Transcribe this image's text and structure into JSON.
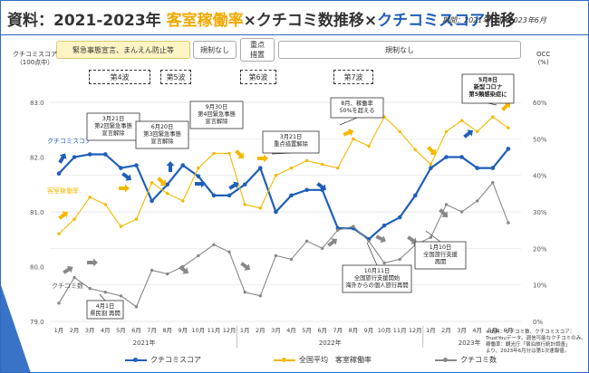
{
  "title": {
    "prefix": "資料：2021-2023年",
    "occ": "客室稼働率",
    "x1": "×",
    "count": "クチコミ数",
    "mid": "推移×",
    "score": "クチコミスコア",
    "suffix": "推移"
  },
  "period": "期間：2021年1月～2023年6月",
  "restrictions": {
    "emergency": "緊急事態宣言、まんえん防止等",
    "restricted": "規制なし",
    "priority": "重点\n措置",
    "no_restriction": "規制なし"
  },
  "waves": [
    "第4波",
    "第5波",
    "第6波",
    "第7波"
  ],
  "axis_left_title": "クチコミスコア\n（100点中）",
  "axis_right_title": "OCC\n(%)",
  "series_labels": {
    "score": "クチコミスコア",
    "occ": "客室稼働率",
    "count": "クチコミ数"
  },
  "years": [
    "2021年",
    "2022年",
    "2023年"
  ],
  "source_note": "※出典：クチコミ数、クチコミスコア：\nTrustYouデータ。週信可能なクチコミのみ。\n稼働率：観光庁「宿泊旅行統計調査」\nより、2023年6月分は第1次速報値。",
  "legend": {
    "score": "クチコミスコア",
    "occ": "全国平均　客室稼働率",
    "count": "クチコミ数"
  },
  "colors": {
    "score": "#1f5fb8",
    "occ": "#f5b800",
    "count": "#888888",
    "accent": "#2d6bc4"
  },
  "annotations": [
    {
      "text": "3月21日\n第2回緊急事態\n宣言解除"
    },
    {
      "text": "6月20日\n第3回緊急事態\n宣言解除"
    },
    {
      "text": "9月30日\n第4回緊急事態\n宣言解除"
    },
    {
      "text": "3月21日\n重点措置解除"
    },
    {
      "text": "8月、稼働率\n50%を超える"
    },
    {
      "text": "5月8日\n新型コロナ\n第5類感染症に"
    },
    {
      "text": "4月1日\n県民割 再開"
    },
    {
      "text": "10月11日\n全国旅行支援開始\n海外からの個人旅行再開"
    },
    {
      "text": "1月10日\n全国旅行支援\n再開"
    }
  ],
  "chart_data": {
    "type": "line",
    "x": [
      "1月",
      "2月",
      "3月",
      "4月",
      "5月",
      "6月",
      "7月",
      "8月",
      "9月",
      "10月",
      "11月",
      "12月",
      "1月",
      "2月",
      "3月",
      "4月",
      "5月",
      "6月",
      "7月",
      "8月",
      "9月",
      "10月",
      "11月",
      "12月",
      "1月",
      "2月",
      "3月",
      "4月",
      "5月",
      "6月"
    ],
    "year_groups": [
      {
        "label": "2021年",
        "start": 0,
        "end": 11
      },
      {
        "label": "2022年",
        "start": 12,
        "end": 23
      },
      {
        "label": "2023年",
        "start": 24,
        "end": 29
      }
    ],
    "y_left": {
      "ticks": [
        "79.0",
        "80.0",
        "81.0",
        "82.0",
        "83.0"
      ],
      "range": [
        79.0,
        83.0
      ]
    },
    "y_right": {
      "ticks": [
        "0%",
        "10%",
        "20%",
        "30%",
        "40%",
        "50%",
        "60%"
      ],
      "range": [
        0,
        60
      ]
    },
    "series": [
      {
        "name": "クチコミスコア",
        "axis": "left",
        "values": [
          81.7,
          82.0,
          82.05,
          82.05,
          81.8,
          81.85,
          81.2,
          81.5,
          81.85,
          81.65,
          81.3,
          81.3,
          81.5,
          81.8,
          81.0,
          81.3,
          81.4,
          81.4,
          80.7,
          80.7,
          80.5,
          80.75,
          80.9,
          81.3,
          81.8,
          82.0,
          82.0,
          81.8,
          81.8,
          82.15
        ]
      },
      {
        "name": "客室稼働率",
        "axis": "right",
        "values": [
          24,
          28,
          34,
          32,
          26,
          28,
          38,
          35,
          33,
          42,
          46,
          46,
          32,
          31,
          40,
          42,
          44,
          43,
          42,
          50,
          48,
          56,
          52,
          47,
          43,
          52,
          55,
          52,
          56,
          53
        ]
      },
      {
        "name": "クチコミ数",
        "axis": "right",
        "values": [
          5,
          12,
          9,
          8,
          7,
          4,
          14,
          13,
          15,
          18,
          21,
          19,
          8,
          7,
          18,
          17,
          22,
          20,
          25,
          26,
          22,
          16,
          17,
          21,
          23,
          32,
          30,
          33,
          38,
          27
        ]
      }
    ]
  }
}
